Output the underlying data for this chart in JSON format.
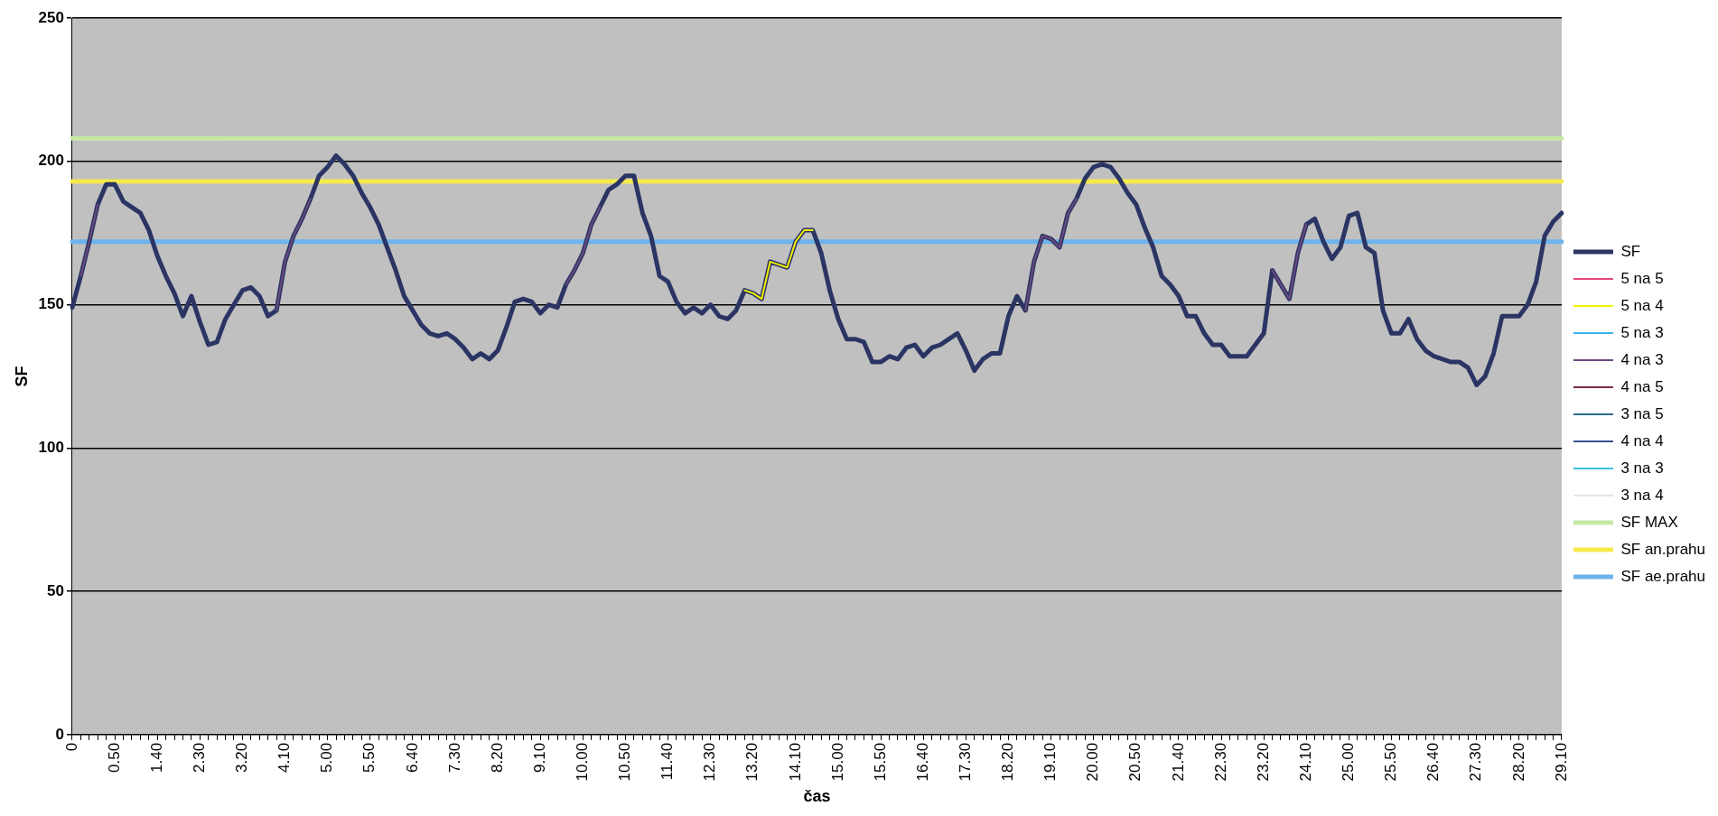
{
  "chart_data": {
    "type": "line",
    "xlabel": "čas",
    "ylabel": "SF",
    "ylim": [
      0,
      250
    ],
    "yticks": [
      0,
      50,
      100,
      150,
      200,
      250
    ],
    "grid": "y",
    "legend": "right",
    "marker": "none",
    "line_style": "solid",
    "categories": [
      "0",
      null,
      null,
      null,
      null,
      "0.50",
      null,
      null,
      null,
      null,
      "1.40",
      null,
      null,
      null,
      null,
      "2.30",
      null,
      null,
      null,
      null,
      "3.20",
      null,
      null,
      null,
      null,
      "4.10",
      null,
      null,
      null,
      null,
      "5.00",
      null,
      null,
      null,
      null,
      "5.50",
      null,
      null,
      null,
      null,
      "6.40",
      null,
      null,
      null,
      null,
      "7.30",
      null,
      null,
      null,
      null,
      "8.20",
      null,
      null,
      null,
      null,
      "9.10",
      null,
      null,
      null,
      null,
      "10.00",
      null,
      null,
      null,
      null,
      "10.50",
      null,
      null,
      null,
      null,
      "11.40",
      null,
      null,
      null,
      null,
      "12.30",
      null,
      null,
      null,
      null,
      "13.20",
      null,
      null,
      null,
      null,
      "14.10",
      null,
      null,
      null,
      null,
      "15.00",
      null,
      null,
      null,
      null,
      "15.50",
      null,
      null,
      null,
      null,
      "16.40",
      null,
      null,
      null,
      null,
      "17.30",
      null,
      null,
      null,
      null,
      "18.20",
      null,
      null,
      null,
      null,
      "19.10",
      null,
      null,
      null,
      null,
      "20.00",
      null,
      null,
      null,
      null,
      "20.50",
      null,
      null,
      null,
      null,
      "21.40",
      null,
      null,
      null,
      null,
      "22.30",
      null,
      null,
      null,
      null,
      "23.20",
      null,
      null,
      null,
      null,
      "24.10",
      null,
      null,
      null,
      null,
      "25.00",
      null,
      null,
      null,
      null,
      "25.50",
      null,
      null,
      null,
      null,
      "26.40",
      null,
      null,
      null,
      null,
      "27.30",
      null,
      null,
      null,
      null,
      "28.20",
      null,
      null,
      null,
      null,
      "29.10"
    ],
    "series": [
      {
        "name": "SF",
        "color": "#2b3564",
        "values": [
          149,
          160,
          172,
          185,
          192,
          192,
          186,
          184,
          182,
          176,
          167,
          160,
          154,
          146,
          153,
          144,
          136,
          137,
          145,
          150,
          155,
          156,
          153,
          146,
          148,
          165,
          174,
          180,
          187,
          195,
          198,
          202,
          199,
          195,
          189,
          184,
          178,
          170,
          162,
          153,
          148,
          143,
          140,
          139,
          140,
          138,
          135,
          131,
          133,
          131,
          134,
          142,
          151,
          152,
          151,
          147,
          150,
          149,
          157,
          162,
          168,
          178,
          184,
          190,
          192,
          195,
          195,
          182,
          174,
          160,
          158,
          151,
          147,
          149,
          147,
          150,
          146,
          145,
          148,
          155,
          154,
          152,
          165,
          164,
          163,
          172,
          176,
          176,
          168,
          155,
          145,
          138,
          138,
          137,
          130,
          130,
          132,
          131,
          135,
          136,
          132,
          135,
          136,
          138,
          140,
          134,
          127,
          131,
          133,
          133,
          146,
          153,
          148,
          165,
          174,
          173,
          170,
          182,
          187,
          194,
          198,
          199,
          198,
          194,
          189,
          185,
          177,
          170,
          160,
          157,
          153,
          146,
          146,
          140,
          136,
          136,
          132,
          132,
          132,
          136,
          140,
          162,
          157,
          152,
          168,
          178,
          180,
          172,
          166,
          170,
          181,
          182,
          170,
          168,
          148,
          140,
          140,
          145,
          138,
          134,
          132,
          131,
          130,
          130,
          128,
          122,
          125,
          133,
          146,
          146,
          146,
          150,
          158,
          174,
          179,
          182
        ]
      },
      {
        "name": "5 na 5",
        "color": "#e8467c",
        "values": [
          null,
          null,
          null,
          null,
          null,
          null,
          null,
          null,
          null,
          null,
          null,
          null,
          null,
          null,
          null,
          null,
          null,
          null,
          null,
          null,
          null,
          null,
          null,
          null,
          null,
          null,
          null,
          null,
          null,
          null,
          null,
          null,
          null,
          null,
          null,
          null,
          null,
          null,
          null,
          null,
          null,
          null,
          null,
          null,
          null,
          null,
          null,
          null,
          null,
          null,
          null,
          null,
          null,
          null,
          null,
          null,
          null,
          null,
          null,
          null,
          null,
          null,
          null,
          null,
          null,
          null,
          null,
          null,
          null,
          null,
          null,
          null,
          null,
          null,
          null,
          null,
          null,
          null,
          null,
          null,
          null,
          null,
          null,
          null,
          null,
          null,
          null,
          null,
          null,
          null,
          null,
          null,
          null,
          null,
          null,
          null,
          null,
          null,
          null,
          null,
          null,
          null,
          null,
          null,
          null,
          null,
          null,
          null,
          null,
          null,
          null,
          null,
          null,
          null,
          null,
          null,
          null,
          null,
          null,
          null,
          null,
          null,
          null,
          null,
          null,
          null,
          null,
          null,
          null,
          null,
          null,
          null,
          null,
          null,
          null,
          null,
          null,
          null,
          null,
          null,
          null,
          null,
          null,
          null,
          null,
          null,
          null,
          null,
          null,
          null,
          null,
          null,
          null,
          null,
          null,
          null,
          null,
          null,
          null,
          null,
          null,
          null,
          null,
          null,
          null,
          null,
          null,
          null,
          null,
          null,
          null,
          null,
          null,
          null,
          null,
          null
        ]
      },
      {
        "name": "5 na 4",
        "color": "#f2f200",
        "values": [
          null,
          null,
          null,
          null,
          null,
          null,
          null,
          null,
          null,
          null,
          null,
          null,
          null,
          null,
          null,
          null,
          null,
          null,
          null,
          null,
          null,
          null,
          null,
          null,
          null,
          null,
          null,
          null,
          null,
          null,
          null,
          null,
          null,
          null,
          null,
          null,
          null,
          null,
          null,
          null,
          null,
          null,
          null,
          null,
          null,
          null,
          null,
          null,
          null,
          null,
          null,
          null,
          null,
          null,
          null,
          null,
          null,
          null,
          null,
          null,
          null,
          null,
          null,
          null,
          null,
          null,
          null,
          null,
          null,
          null,
          null,
          null,
          null,
          null,
          null,
          null,
          null,
          null,
          null,
          155,
          154,
          152,
          165,
          164,
          163,
          172,
          176,
          176,
          null,
          null,
          null,
          null,
          null,
          null,
          null,
          null,
          null,
          null,
          null,
          null,
          null,
          null,
          null,
          null,
          null,
          null,
          null,
          null,
          null,
          null,
          null,
          null,
          null,
          null,
          null,
          null,
          null,
          null,
          null,
          null,
          null,
          null,
          null,
          null,
          null,
          null,
          null,
          null,
          null,
          null,
          null,
          null,
          null,
          null,
          null,
          null,
          null,
          null,
          null,
          null,
          null,
          null,
          null,
          null,
          null,
          null,
          null,
          null,
          null,
          null,
          null,
          null,
          null,
          null,
          null,
          null,
          null,
          null,
          null,
          null,
          null,
          null,
          null,
          null,
          null,
          null,
          null,
          null,
          null,
          null,
          null,
          null,
          null,
          null,
          null,
          null
        ]
      },
      {
        "name": "5 na 3",
        "color": "#3cb4e6",
        "values": [
          null,
          null,
          null,
          null,
          null,
          null,
          null,
          null,
          null,
          null,
          null,
          null,
          null,
          null,
          null,
          null,
          null,
          null,
          null,
          null,
          null,
          null,
          null,
          null,
          null,
          null,
          null,
          null,
          null,
          null,
          null,
          null,
          null,
          null,
          null,
          null,
          null,
          null,
          null,
          null,
          null,
          null,
          null,
          null,
          null,
          null,
          null,
          null,
          null,
          null,
          null,
          null,
          null,
          null,
          null,
          null,
          null,
          null,
          null,
          null,
          null,
          null,
          null,
          null,
          null,
          null,
          null,
          null,
          null,
          null,
          null,
          null,
          null,
          null,
          null,
          null,
          null,
          null,
          null,
          null,
          null,
          null,
          null,
          null,
          null,
          null,
          null,
          null,
          null,
          null,
          null,
          null,
          null,
          null,
          null,
          null,
          null,
          null,
          null,
          null,
          null,
          null,
          null,
          null,
          null,
          null,
          null,
          null,
          null,
          null,
          null,
          null,
          null,
          null,
          null,
          null,
          null,
          null,
          null,
          null,
          null,
          null,
          null,
          null,
          null,
          null,
          null,
          null,
          null,
          null,
          null,
          null,
          null,
          null,
          null,
          null,
          null,
          null,
          null,
          null,
          null,
          null,
          null,
          null,
          null,
          null,
          null,
          null,
          null,
          null,
          null,
          null,
          null,
          null,
          null,
          null,
          null,
          null,
          null,
          null,
          null,
          null,
          null,
          null,
          null,
          null,
          null,
          null,
          null,
          null,
          null,
          null,
          null,
          null,
          null,
          null
        ]
      },
      {
        "name": "4 na 3",
        "color": "#6a4a7e",
        "values": [
          null,
          160,
          172,
          185,
          null,
          null,
          null,
          null,
          null,
          null,
          null,
          null,
          null,
          null,
          null,
          null,
          null,
          null,
          null,
          null,
          null,
          null,
          null,
          null,
          148,
          165,
          174,
          180,
          187,
          null,
          null,
          null,
          null,
          null,
          null,
          null,
          null,
          null,
          null,
          null,
          null,
          null,
          null,
          null,
          null,
          null,
          null,
          null,
          null,
          null,
          null,
          null,
          null,
          null,
          null,
          null,
          null,
          null,
          157,
          162,
          168,
          178,
          184,
          null,
          null,
          null,
          null,
          null,
          null,
          null,
          null,
          null,
          null,
          null,
          null,
          null,
          null,
          null,
          null,
          null,
          null,
          null,
          null,
          null,
          null,
          null,
          null,
          null,
          null,
          null,
          null,
          null,
          null,
          null,
          null,
          null,
          null,
          null,
          null,
          null,
          null,
          null,
          null,
          null,
          null,
          null,
          null,
          null,
          null,
          null,
          null,
          null,
          148,
          165,
          174,
          173,
          170,
          182,
          187,
          null,
          null,
          null,
          null,
          null,
          null,
          null,
          null,
          null,
          null,
          null,
          null,
          null,
          null,
          null,
          null,
          null,
          null,
          null,
          null,
          null,
          null,
          162,
          157,
          152,
          168,
          178,
          null,
          null,
          null,
          null,
          null,
          null,
          null,
          null,
          null,
          null,
          null,
          null,
          null,
          null,
          null,
          null,
          null,
          null,
          null,
          null,
          null,
          null,
          null,
          null,
          null,
          null,
          null,
          null,
          null,
          null
        ]
      },
      {
        "name": "4 na 5",
        "color": "#7b2c40",
        "values": [
          null,
          null,
          null,
          null,
          null,
          null,
          null,
          null,
          null,
          null,
          null,
          null,
          null,
          null,
          null,
          null,
          null,
          null,
          null,
          null,
          null,
          null,
          null,
          null,
          null,
          null,
          null,
          null,
          null,
          null,
          null,
          null,
          null,
          null,
          null,
          null,
          null,
          null,
          null,
          null,
          null,
          null,
          null,
          null,
          null,
          null,
          null,
          null,
          null,
          null,
          null,
          null,
          null,
          null,
          null,
          null,
          null,
          null,
          null,
          null,
          null,
          null,
          null,
          null,
          null,
          null,
          null,
          null,
          null,
          null,
          null,
          null,
          null,
          null,
          null,
          null,
          null,
          null,
          null,
          null,
          null,
          null,
          null,
          null,
          null,
          null,
          null,
          null,
          null,
          null,
          null,
          null,
          null,
          null,
          null,
          null,
          null,
          null,
          null,
          null,
          null,
          null,
          null,
          null,
          null,
          null,
          null,
          null,
          null,
          null,
          null,
          null,
          null,
          null,
          null,
          null,
          null,
          null,
          null,
          null,
          null,
          null,
          null,
          null,
          null,
          null,
          null,
          null,
          null,
          null,
          null,
          null,
          null,
          null,
          null,
          null,
          null,
          null,
          null,
          null,
          null,
          null,
          null,
          null,
          null,
          null,
          null,
          null,
          null,
          null,
          null,
          null,
          null,
          null,
          null,
          null,
          null,
          null,
          null,
          null,
          null,
          null,
          null,
          null,
          null,
          null,
          null,
          null,
          null,
          null,
          null,
          null,
          null,
          null,
          null,
          null
        ]
      },
      {
        "name": "3 na 5",
        "color": "#2d6d8c",
        "values": [
          null,
          null,
          null,
          null,
          null,
          null,
          null,
          null,
          null,
          null,
          null,
          null,
          null,
          null,
          null,
          null,
          null,
          null,
          null,
          null,
          null,
          null,
          null,
          null,
          null,
          null,
          null,
          null,
          null,
          null,
          null,
          null,
          null,
          null,
          null,
          null,
          null,
          null,
          null,
          null,
          null,
          null,
          null,
          null,
          null,
          null,
          null,
          null,
          null,
          null,
          null,
          null,
          null,
          null,
          null,
          null,
          null,
          null,
          null,
          null,
          null,
          null,
          null,
          null,
          null,
          null,
          null,
          null,
          null,
          null,
          null,
          null,
          null,
          null,
          null,
          null,
          null,
          null,
          null,
          null,
          null,
          null,
          null,
          null,
          null,
          null,
          null,
          null,
          null,
          null,
          null,
          null,
          null,
          null,
          null,
          null,
          null,
          null,
          null,
          null,
          null,
          null,
          null,
          null,
          null,
          null,
          null,
          null,
          null,
          null,
          null,
          null,
          null,
          null,
          null,
          null,
          null,
          null,
          null,
          null,
          null,
          null,
          null,
          null,
          null,
          null,
          null,
          null,
          null,
          null,
          null,
          null,
          null,
          null,
          null,
          null,
          null,
          null,
          null,
          null,
          null,
          null,
          null,
          null,
          null,
          null,
          null,
          null,
          null,
          null,
          null,
          null,
          null,
          null,
          null,
          null,
          null,
          null,
          null,
          null,
          null,
          null,
          null,
          null,
          null,
          null,
          null,
          null,
          null,
          null,
          null,
          null,
          null,
          null,
          null,
          null
        ]
      },
      {
        "name": "4 na 4",
        "color": "#3d4f8f",
        "values": [
          null,
          null,
          null,
          null,
          null,
          null,
          null,
          null,
          null,
          null,
          null,
          null,
          null,
          null,
          null,
          null,
          null,
          null,
          null,
          null,
          null,
          null,
          null,
          null,
          null,
          null,
          null,
          null,
          null,
          null,
          null,
          null,
          null,
          null,
          null,
          null,
          null,
          null,
          null,
          null,
          null,
          null,
          null,
          null,
          null,
          null,
          null,
          null,
          null,
          null,
          null,
          null,
          null,
          null,
          null,
          null,
          null,
          null,
          null,
          null,
          null,
          null,
          null,
          null,
          null,
          null,
          null,
          null,
          null,
          null,
          null,
          null,
          null,
          null,
          null,
          null,
          null,
          null,
          null,
          null,
          null,
          null,
          null,
          null,
          null,
          null,
          null,
          null,
          null,
          null,
          null,
          null,
          null,
          null,
          null,
          null,
          null,
          null,
          null,
          null,
          null,
          null,
          null,
          null,
          null,
          null,
          null,
          null,
          null,
          null,
          null,
          null,
          null,
          null,
          null,
          null,
          null,
          null,
          null,
          null,
          null,
          null,
          null,
          null,
          null,
          null,
          null,
          null,
          null,
          null,
          null,
          null,
          null,
          null,
          null,
          null,
          null,
          null,
          null,
          null,
          null,
          null,
          null,
          null,
          null,
          null,
          null,
          null,
          null,
          null,
          null,
          null,
          null,
          null,
          null,
          null,
          null,
          null,
          null,
          null,
          null,
          null,
          null,
          null,
          null,
          null,
          null,
          null,
          null,
          null,
          null,
          null,
          null,
          null,
          null,
          null
        ]
      },
      {
        "name": "3 na 3",
        "color": "#39bfe6",
        "values": [
          null,
          null,
          null,
          null,
          null,
          null,
          null,
          null,
          null,
          null,
          null,
          null,
          null,
          null,
          null,
          null,
          null,
          null,
          null,
          null,
          null,
          null,
          null,
          null,
          null,
          null,
          null,
          null,
          null,
          null,
          null,
          null,
          null,
          null,
          null,
          null,
          null,
          null,
          null,
          null,
          null,
          null,
          null,
          null,
          null,
          null,
          null,
          null,
          null,
          null,
          null,
          null,
          null,
          null,
          null,
          null,
          null,
          null,
          null,
          null,
          null,
          null,
          null,
          null,
          null,
          null,
          null,
          null,
          null,
          null,
          null,
          null,
          null,
          null,
          null,
          null,
          null,
          null,
          null,
          null,
          null,
          null,
          null,
          null,
          null,
          null,
          null,
          null,
          null,
          null,
          null,
          null,
          null,
          null,
          null,
          null,
          null,
          null,
          null,
          null,
          null,
          null,
          null,
          null,
          null,
          null,
          null,
          null,
          null,
          null,
          null,
          null,
          null,
          null,
          null,
          null,
          null,
          null,
          null,
          null,
          null,
          null,
          null,
          null,
          null,
          null,
          null,
          null,
          null,
          null,
          null,
          null,
          null,
          null,
          null,
          null,
          null,
          null,
          null,
          null,
          null,
          null,
          null,
          null,
          null,
          null,
          null,
          null,
          null,
          null,
          null,
          null,
          null,
          null,
          null,
          null,
          null,
          null,
          null,
          null,
          null,
          null,
          null,
          null,
          null,
          null,
          null,
          null,
          null,
          null,
          null,
          null,
          null,
          null,
          null,
          null
        ]
      },
      {
        "name": "3 na 4",
        "color": "#e4e4e4",
        "values": [
          null,
          null,
          null,
          null,
          null,
          null,
          null,
          null,
          null,
          null,
          null,
          null,
          null,
          null,
          null,
          null,
          null,
          null,
          null,
          null,
          null,
          null,
          null,
          null,
          null,
          null,
          null,
          null,
          null,
          null,
          null,
          null,
          null,
          null,
          null,
          null,
          null,
          null,
          null,
          null,
          null,
          null,
          null,
          null,
          null,
          null,
          null,
          null,
          null,
          null,
          null,
          null,
          null,
          null,
          null,
          null,
          null,
          null,
          null,
          null,
          null,
          null,
          null,
          null,
          null,
          null,
          null,
          null,
          null,
          null,
          null,
          null,
          null,
          null,
          null,
          null,
          null,
          null,
          null,
          null,
          null,
          null,
          null,
          null,
          null,
          null,
          null,
          null,
          null,
          null,
          null,
          null,
          null,
          null,
          null,
          null,
          null,
          null,
          null,
          null,
          null,
          null,
          null,
          null,
          null,
          null,
          null,
          null,
          null,
          null,
          null,
          null,
          null,
          null,
          null,
          null,
          null,
          null,
          null,
          null,
          null,
          null,
          null,
          null,
          null,
          null,
          null,
          null,
          null,
          null,
          null,
          null,
          null,
          null,
          null,
          null,
          null,
          null,
          null,
          null,
          null,
          null,
          null,
          null,
          null,
          null,
          null,
          null,
          null,
          null,
          null,
          null,
          null,
          null,
          null,
          null,
          null,
          null,
          null,
          null,
          null,
          null,
          null,
          null,
          null,
          null,
          null,
          null,
          null,
          null,
          null,
          null,
          null,
          null,
          null,
          null
        ]
      },
      {
        "name": "SF MAX",
        "color": "#c6e8a5",
        "values": [
          208,
          208,
          208,
          208,
          208,
          208,
          208,
          208,
          208,
          208,
          208,
          208,
          208,
          208,
          208,
          208,
          208,
          208,
          208,
          208,
          208,
          208,
          208,
          208,
          208,
          208,
          208,
          208,
          208,
          208,
          208,
          208,
          208,
          208,
          208,
          208,
          208,
          208,
          208,
          208,
          208,
          208,
          208,
          208,
          208,
          208,
          208,
          208,
          208,
          208,
          208,
          208,
          208,
          208,
          208,
          208,
          208,
          208,
          208,
          208,
          208,
          208,
          208,
          208,
          208,
          208,
          208,
          208,
          208,
          208,
          208,
          208,
          208,
          208,
          208,
          208,
          208,
          208,
          208,
          208,
          208,
          208,
          208,
          208,
          208,
          208,
          208,
          208,
          208,
          208,
          208,
          208,
          208,
          208,
          208,
          208,
          208,
          208,
          208,
          208,
          208,
          208,
          208,
          208,
          208,
          208,
          208,
          208,
          208,
          208,
          208,
          208,
          208,
          208,
          208,
          208,
          208,
          208,
          208,
          208,
          208,
          208,
          208,
          208,
          208,
          208,
          208,
          208,
          208,
          208,
          208,
          208,
          208,
          208,
          208,
          208,
          208,
          208,
          208,
          208,
          208,
          208,
          208,
          208,
          208,
          208,
          208,
          208,
          208,
          208,
          208,
          208,
          208,
          208,
          208,
          208,
          208,
          208,
          208,
          208,
          208,
          208,
          208,
          208,
          208,
          208,
          208,
          208,
          208,
          208,
          208,
          208,
          208,
          208,
          208,
          208
        ]
      },
      {
        "name": "SF an.prahu",
        "color": "#f6ea4c",
        "values": [
          193,
          193,
          193,
          193,
          193,
          193,
          193,
          193,
          193,
          193,
          193,
          193,
          193,
          193,
          193,
          193,
          193,
          193,
          193,
          193,
          193,
          193,
          193,
          193,
          193,
          193,
          193,
          193,
          193,
          193,
          193,
          193,
          193,
          193,
          193,
          193,
          193,
          193,
          193,
          193,
          193,
          193,
          193,
          193,
          193,
          193,
          193,
          193,
          193,
          193,
          193,
          193,
          193,
          193,
          193,
          193,
          193,
          193,
          193,
          193,
          193,
          193,
          193,
          193,
          193,
          193,
          193,
          193,
          193,
          193,
          193,
          193,
          193,
          193,
          193,
          193,
          193,
          193,
          193,
          193,
          193,
          193,
          193,
          193,
          193,
          193,
          193,
          193,
          193,
          193,
          193,
          193,
          193,
          193,
          193,
          193,
          193,
          193,
          193,
          193,
          193,
          193,
          193,
          193,
          193,
          193,
          193,
          193,
          193,
          193,
          193,
          193,
          193,
          193,
          193,
          193,
          193,
          193,
          193,
          193,
          193,
          193,
          193,
          193,
          193,
          193,
          193,
          193,
          193,
          193,
          193,
          193,
          193,
          193,
          193,
          193,
          193,
          193,
          193,
          193,
          193,
          193,
          193,
          193,
          193,
          193,
          193,
          193,
          193,
          193,
          193,
          193,
          193,
          193,
          193,
          193,
          193,
          193,
          193,
          193,
          193,
          193,
          193,
          193,
          193,
          193,
          193,
          193,
          193,
          193,
          193,
          193,
          193,
          193,
          193,
          193
        ]
      },
      {
        "name": "SF ae.prahu",
        "color": "#6db3ec",
        "values": [
          172,
          172,
          172,
          172,
          172,
          172,
          172,
          172,
          172,
          172,
          172,
          172,
          172,
          172,
          172,
          172,
          172,
          172,
          172,
          172,
          172,
          172,
          172,
          172,
          172,
          172,
          172,
          172,
          172,
          172,
          172,
          172,
          172,
          172,
          172,
          172,
          172,
          172,
          172,
          172,
          172,
          172,
          172,
          172,
          172,
          172,
          172,
          172,
          172,
          172,
          172,
          172,
          172,
          172,
          172,
          172,
          172,
          172,
          172,
          172,
          172,
          172,
          172,
          172,
          172,
          172,
          172,
          172,
          172,
          172,
          172,
          172,
          172,
          172,
          172,
          172,
          172,
          172,
          172,
          172,
          172,
          172,
          172,
          172,
          172,
          172,
          172,
          172,
          172,
          172,
          172,
          172,
          172,
          172,
          172,
          172,
          172,
          172,
          172,
          172,
          172,
          172,
          172,
          172,
          172,
          172,
          172,
          172,
          172,
          172,
          172,
          172,
          172,
          172,
          172,
          172,
          172,
          172,
          172,
          172,
          172,
          172,
          172,
          172,
          172,
          172,
          172,
          172,
          172,
          172,
          172,
          172,
          172,
          172,
          172,
          172,
          172,
          172,
          172,
          172,
          172,
          172,
          172,
          172,
          172,
          172,
          172,
          172,
          172,
          172,
          172,
          172,
          172,
          172,
          172,
          172,
          172,
          172,
          172,
          172,
          172,
          172,
          172,
          172,
          172,
          172,
          172,
          172,
          172,
          172,
          172,
          172,
          172,
          172,
          172,
          172
        ]
      }
    ]
  }
}
